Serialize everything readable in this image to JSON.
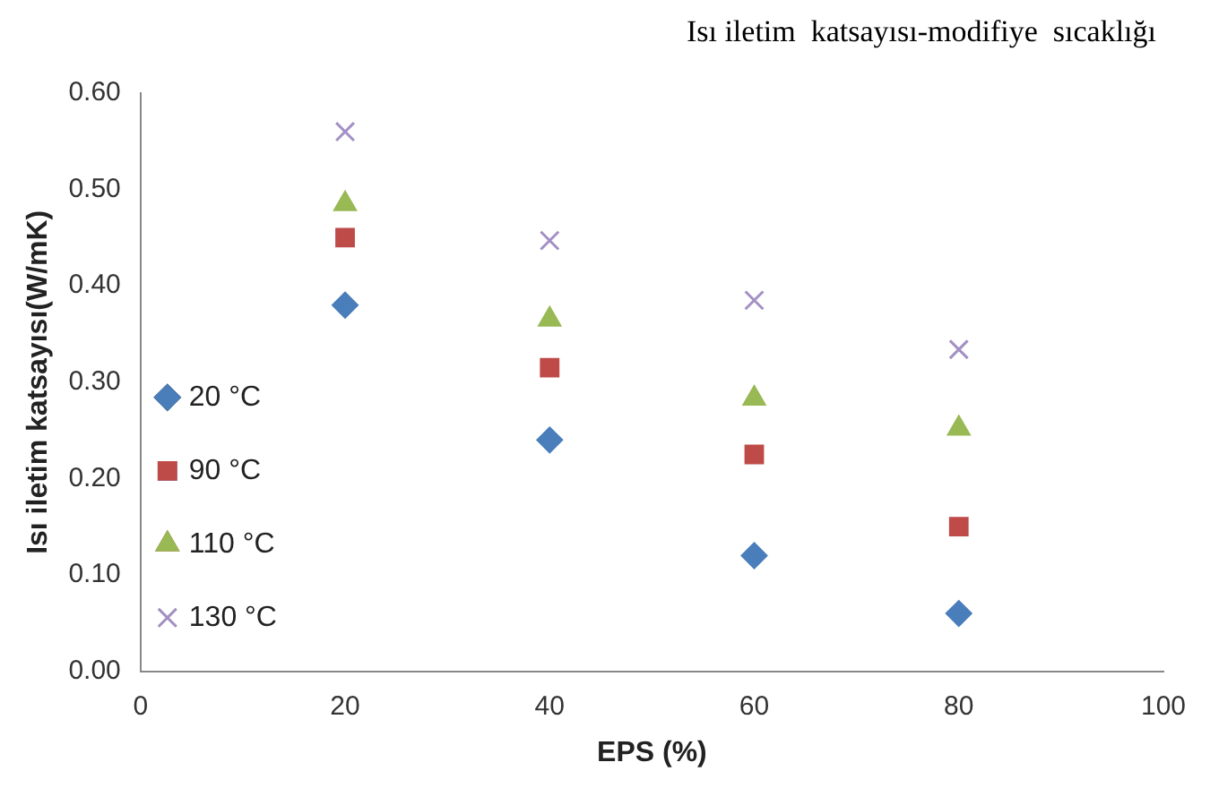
{
  "chart_data": {
    "type": "scatter",
    "title": "Isı iletim  katsayısı-modifiye  sıcaklığı",
    "xlabel": "EPS (%)",
    "ylabel": "Isı iletim katsayısı(W/mK)",
    "x": [
      20,
      40,
      60,
      80
    ],
    "series": [
      {
        "name": "20 °C",
        "color": "#4a7ebb",
        "marker": "diamond",
        "values": [
          0.38,
          0.24,
          0.12,
          0.06
        ]
      },
      {
        "name": "90 °C",
        "color": "#be4b48",
        "marker": "square",
        "values": [
          0.45,
          0.315,
          0.225,
          0.15
        ]
      },
      {
        "name": "110 °C",
        "color": "#98b954",
        "marker": "triangle",
        "values": [
          0.485,
          0.365,
          0.283,
          0.252
        ]
      },
      {
        "name": "130 °C",
        "color": "#a390c4",
        "marker": "cross",
        "values": [
          0.56,
          0.447,
          0.385,
          0.334
        ]
      }
    ],
    "xlim": [
      0,
      100
    ],
    "xticks": [
      0,
      20,
      40,
      60,
      80,
      100
    ],
    "ylim": [
      0,
      0.6
    ],
    "yticks": [
      {
        "value": 0,
        "label": "0.00"
      },
      {
        "value": 0.1,
        "label": "0.10"
      },
      {
        "value": 0.2,
        "label": "0.20"
      },
      {
        "value": 0.3,
        "label": "0.30"
      },
      {
        "value": 0.4,
        "label": "0.40"
      },
      {
        "value": 0.5,
        "label": "0.50"
      },
      {
        "value": 0.6,
        "label": "0.60"
      }
    ],
    "grid": false,
    "legend": "left"
  }
}
